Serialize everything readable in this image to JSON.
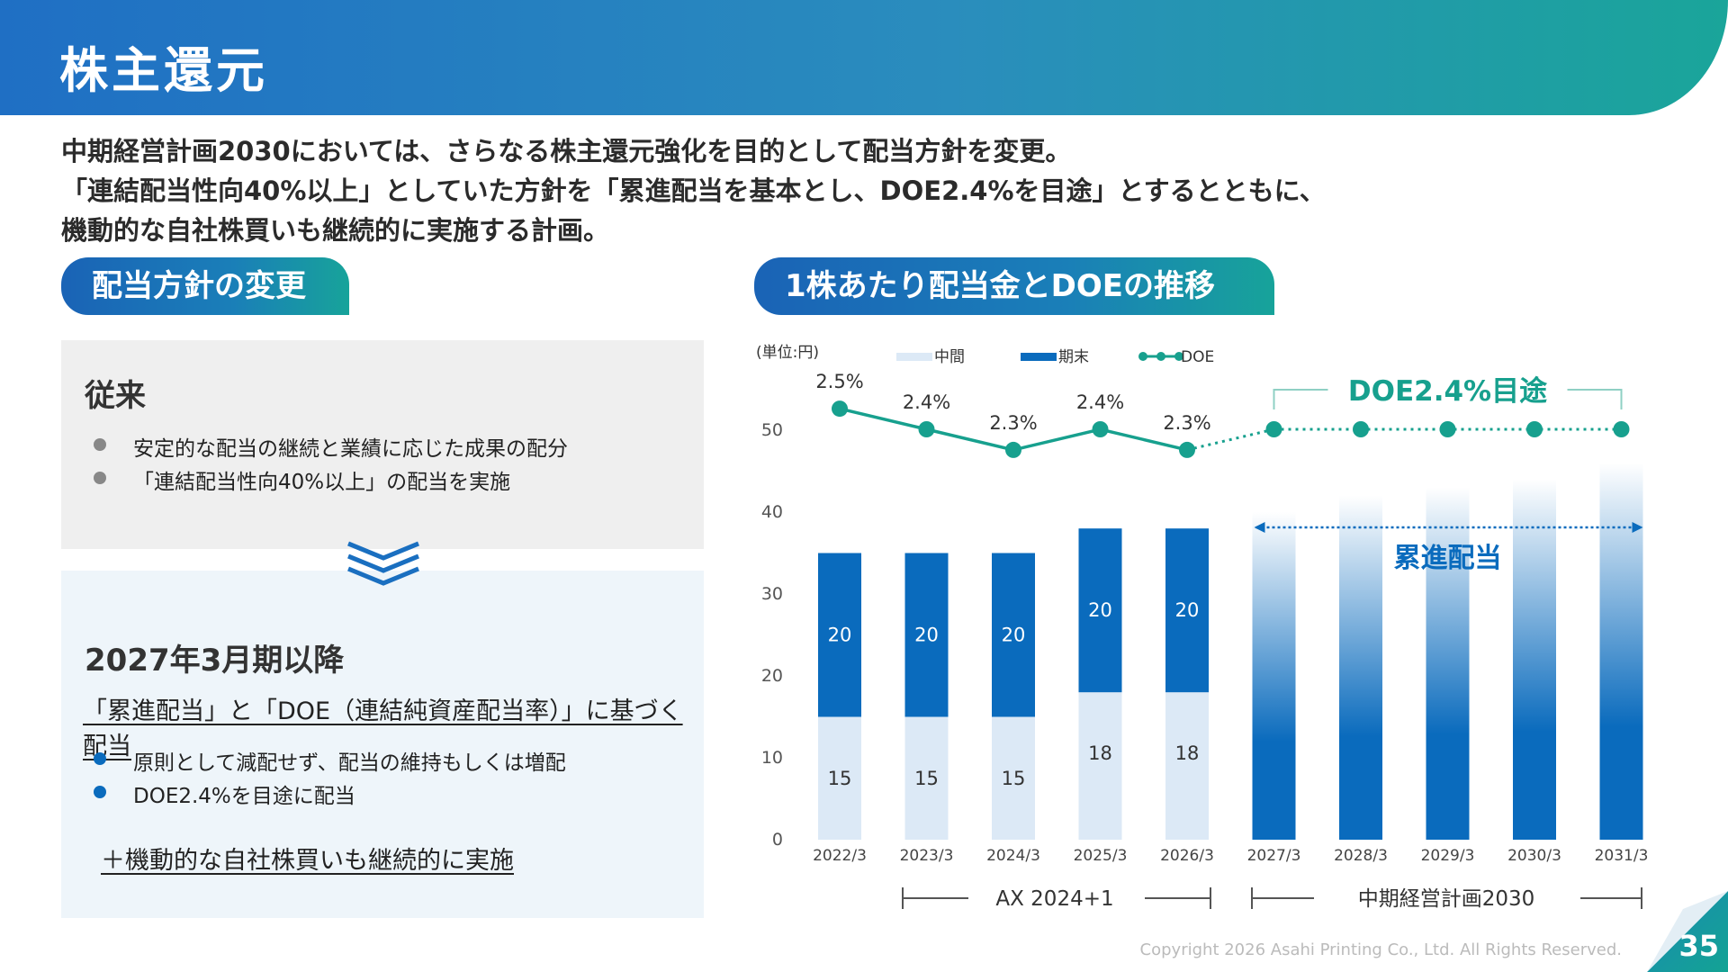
{
  "header": {
    "title": "株主還元"
  },
  "intro": {
    "lines": [
      "中期経営計画2030においては、さらなる株主還元強化を目的として配当方針を変更。",
      "「連結配当性向40%以上」としていた方針を「累進配当を基本とし、DOE2.4%を目途」とするとともに、",
      "機動的な自社株買いも継続的に実施する計画。"
    ]
  },
  "left": {
    "tab": "配当方針の変更",
    "old": {
      "title": "従来",
      "bullets": [
        "安定的な配当の継続と業績に応じた成果の配分",
        "「連結配当性向40%以上」の配当を実施"
      ]
    },
    "new": {
      "title": "2027年3月期以降",
      "subtitle": "「累進配当」と「DOE（連結純資産配当率）」に基づく配当",
      "bullets": [
        "原則として減配せず、配当の維持もしくは増配",
        "DOE2.4%を目途に配当"
      ],
      "extra": "＋機動的な自社株買いも継続的に実施"
    }
  },
  "right": {
    "tab": "1株あたり配当金とDOEの推移"
  },
  "colors": {
    "interim": "#dce9f6",
    "yearend": "#0a6bbd",
    "doe": "#17a08e",
    "gray_dot": "#888888",
    "blue_dot": "#0a6bbd"
  },
  "chart_data": {
    "type": "bar",
    "unit_label": "(単位:円)",
    "legend": [
      {
        "name": "中間",
        "kind": "bar-light"
      },
      {
        "name": "期末",
        "kind": "bar-dark"
      },
      {
        "name": "DOE",
        "kind": "line"
      }
    ],
    "categories": [
      "2022/3",
      "2023/3",
      "2024/3",
      "2025/3",
      "2026/3",
      "2027/3",
      "2028/3",
      "2029/3",
      "2030/3",
      "2031/3"
    ],
    "series": [
      {
        "name": "中間",
        "values": [
          15,
          15,
          15,
          18,
          18,
          null,
          null,
          null,
          null,
          null
        ]
      },
      {
        "name": "期末",
        "values": [
          20,
          20,
          20,
          20,
          20,
          null,
          null,
          null,
          null,
          null
        ]
      },
      {
        "name": "DOE",
        "values": [
          2.5,
          2.4,
          2.3,
          2.4,
          2.3,
          2.4,
          2.4,
          2.4,
          2.4,
          2.4
        ],
        "labels": [
          "2.5%",
          "2.4%",
          "2.3%",
          "2.4%",
          "2.3%",
          "",
          "",
          "",
          "",
          ""
        ]
      }
    ],
    "forecast_bar_levels": [
      40,
      42,
      43,
      44,
      46
    ],
    "yticks": [
      0,
      10,
      20,
      30,
      40,
      50
    ],
    "ylim": [
      0,
      55
    ],
    "annotations": {
      "doe_target": "DOE2.4%目途",
      "progressive": "累進配当"
    },
    "periods": [
      {
        "label": "AX 2024+1"
      },
      {
        "label": "中期経営計画2030"
      }
    ]
  },
  "footer": {
    "copyright": "Copyright 2026 Asahi Printing Co., Ltd. All Rights Reserved.",
    "page": "35"
  }
}
